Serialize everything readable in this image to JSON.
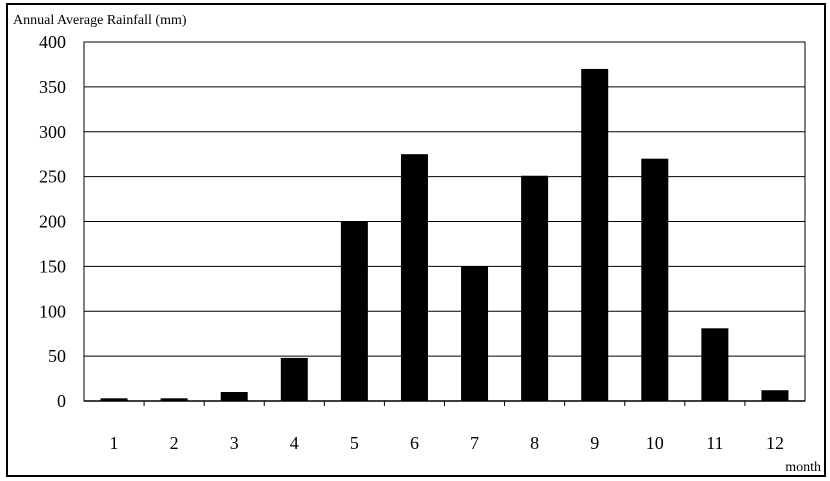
{
  "chart_data": {
    "type": "bar",
    "ylabel": "Annual Average Rainfall (mm)",
    "xlabel": "month",
    "categories": [
      "1",
      "2",
      "3",
      "4",
      "5",
      "6",
      "7",
      "8",
      "9",
      "10",
      "11",
      "12"
    ],
    "values": [
      3,
      3,
      10,
      48,
      200,
      275,
      150,
      251,
      370,
      270,
      81,
      12
    ],
    "ylim": [
      0,
      400
    ],
    "yticks": [
      "0",
      "50",
      "100",
      "150",
      "200",
      "250",
      "300",
      "350",
      "400"
    ],
    "grid": true,
    "legend": "none",
    "bar_color": "#000000"
  }
}
